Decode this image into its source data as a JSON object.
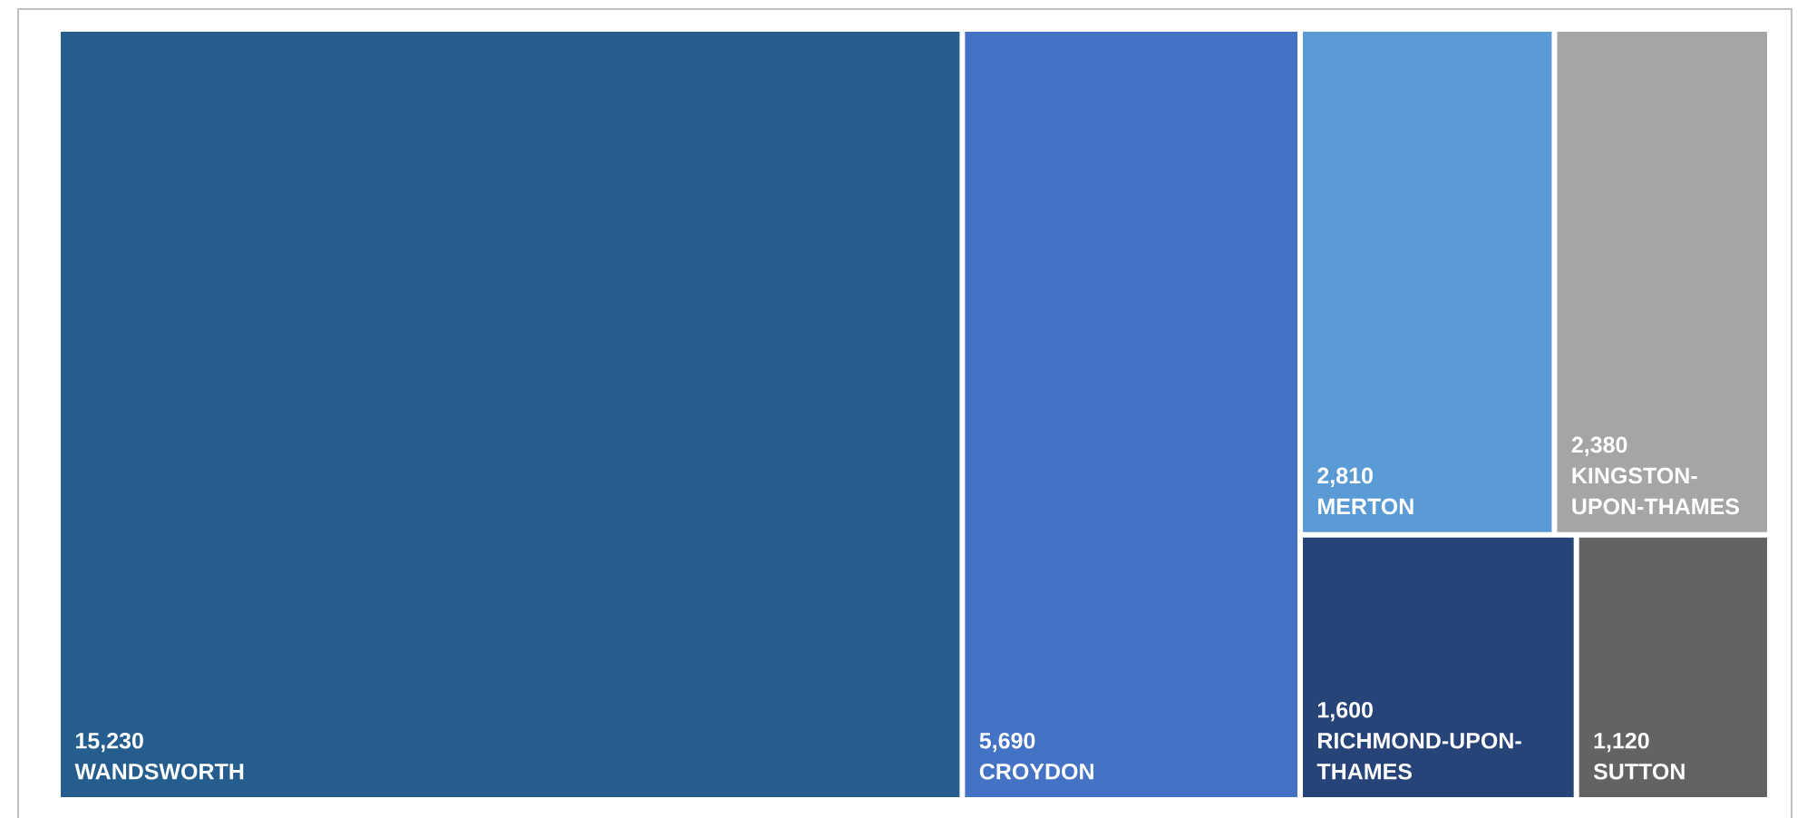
{
  "chart_data": {
    "type": "other",
    "categories": [
      "WANDSWORTH",
      "CROYDON",
      "MERTON",
      "KINGSTON-UPON-THAMES",
      "RICHMOND-UPON-THAMES",
      "SUTTON"
    ],
    "values": [
      15230,
      5690,
      2810,
      2380,
      1600,
      1120
    ],
    "value_labels": [
      "15,230",
      "5,690",
      "2,810",
      "2,380",
      "1,600",
      "1,120"
    ],
    "colors": [
      "#255e8e",
      "#4472c4",
      "#5b9bd5",
      "#a5a5a5",
      "#264478",
      "#636363"
    ]
  }
}
